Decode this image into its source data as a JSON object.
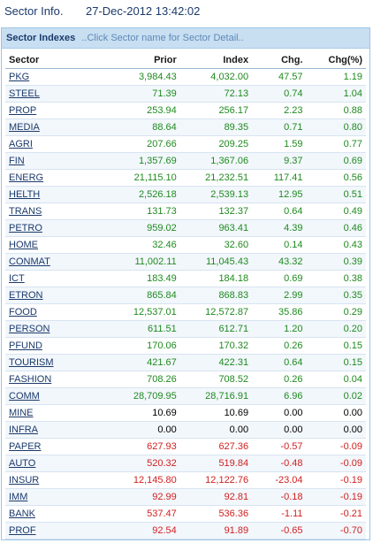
{
  "header": {
    "title": "Sector Info.",
    "datetime": "27-Dec-2012 13:42:02"
  },
  "panel": {
    "title": "Sector Indexes",
    "hint": "..Click Sector name for Sector Detail.."
  },
  "columns": [
    "Sector",
    "Prior",
    "Index",
    "Chg.",
    "Chg(%)"
  ],
  "rows": [
    {
      "sector": "PKG",
      "prior": "3,984.43",
      "index": "4,032.00",
      "chg": "47.57",
      "pct": "1.19",
      "trend": "up"
    },
    {
      "sector": "STEEL",
      "prior": "71.39",
      "index": "72.13",
      "chg": "0.74",
      "pct": "1.04",
      "trend": "up"
    },
    {
      "sector": "PROP",
      "prior": "253.94",
      "index": "256.17",
      "chg": "2.23",
      "pct": "0.88",
      "trend": "up"
    },
    {
      "sector": "MEDIA",
      "prior": "88.64",
      "index": "89.35",
      "chg": "0.71",
      "pct": "0.80",
      "trend": "up"
    },
    {
      "sector": "AGRI",
      "prior": "207.66",
      "index": "209.25",
      "chg": "1.59",
      "pct": "0.77",
      "trend": "up"
    },
    {
      "sector": "FIN",
      "prior": "1,357.69",
      "index": "1,367.06",
      "chg": "9.37",
      "pct": "0.69",
      "trend": "up"
    },
    {
      "sector": "ENERG",
      "prior": "21,115.10",
      "index": "21,232.51",
      "chg": "117.41",
      "pct": "0.56",
      "trend": "up"
    },
    {
      "sector": "HELTH",
      "prior": "2,526.18",
      "index": "2,539.13",
      "chg": "12.95",
      "pct": "0.51",
      "trend": "up"
    },
    {
      "sector": "TRANS",
      "prior": "131.73",
      "index": "132.37",
      "chg": "0.64",
      "pct": "0.49",
      "trend": "up"
    },
    {
      "sector": "PETRO",
      "prior": "959.02",
      "index": "963.41",
      "chg": "4.39",
      "pct": "0.46",
      "trend": "up"
    },
    {
      "sector": "HOME",
      "prior": "32.46",
      "index": "32.60",
      "chg": "0.14",
      "pct": "0.43",
      "trend": "up"
    },
    {
      "sector": "CONMAT",
      "prior": "11,002.11",
      "index": "11,045.43",
      "chg": "43.32",
      "pct": "0.39",
      "trend": "up"
    },
    {
      "sector": "ICT",
      "prior": "183.49",
      "index": "184.18",
      "chg": "0.69",
      "pct": "0.38",
      "trend": "up"
    },
    {
      "sector": "ETRON",
      "prior": "865.84",
      "index": "868.83",
      "chg": "2.99",
      "pct": "0.35",
      "trend": "up"
    },
    {
      "sector": "FOOD",
      "prior": "12,537.01",
      "index": "12,572.87",
      "chg": "35.86",
      "pct": "0.29",
      "trend": "up"
    },
    {
      "sector": "PERSON",
      "prior": "611.51",
      "index": "612.71",
      "chg": "1.20",
      "pct": "0.20",
      "trend": "up"
    },
    {
      "sector": "PFUND",
      "prior": "170.06",
      "index": "170.32",
      "chg": "0.26",
      "pct": "0.15",
      "trend": "up"
    },
    {
      "sector": "TOURISM",
      "prior": "421.67",
      "index": "422.31",
      "chg": "0.64",
      "pct": "0.15",
      "trend": "up"
    },
    {
      "sector": "FASHION",
      "prior": "708.26",
      "index": "708.52",
      "chg": "0.26",
      "pct": "0.04",
      "trend": "up"
    },
    {
      "sector": "COMM",
      "prior": "28,709.95",
      "index": "28,716.91",
      "chg": "6.96",
      "pct": "0.02",
      "trend": "up"
    },
    {
      "sector": "MINE",
      "prior": "10.69",
      "index": "10.69",
      "chg": "0.00",
      "pct": "0.00",
      "trend": "flat"
    },
    {
      "sector": "INFRA",
      "prior": "0.00",
      "index": "0.00",
      "chg": "0.00",
      "pct": "0.00",
      "trend": "flat"
    },
    {
      "sector": "PAPER",
      "prior": "627.93",
      "index": "627.36",
      "chg": "-0.57",
      "pct": "-0.09",
      "trend": "down"
    },
    {
      "sector": "AUTO",
      "prior": "520.32",
      "index": "519.84",
      "chg": "-0.48",
      "pct": "-0.09",
      "trend": "down"
    },
    {
      "sector": "INSUR",
      "prior": "12,145.80",
      "index": "12,122.76",
      "chg": "-23.04",
      "pct": "-0.19",
      "trend": "down"
    },
    {
      "sector": "IMM",
      "prior": "92.99",
      "index": "92.81",
      "chg": "-0.18",
      "pct": "-0.19",
      "trend": "down"
    },
    {
      "sector": "BANK",
      "prior": "537.47",
      "index": "536.36",
      "chg": "-1.11",
      "pct": "-0.21",
      "trend": "down"
    },
    {
      "sector": "PROF",
      "prior": "92.54",
      "index": "91.89",
      "chg": "-0.65",
      "pct": "-0.70",
      "trend": "down"
    }
  ],
  "colors": {
    "up": "#1f8a1f",
    "down": "#d11f1f",
    "flat": "#000000",
    "link": "#1b3a6b",
    "header_bg": "#c8dff2"
  }
}
